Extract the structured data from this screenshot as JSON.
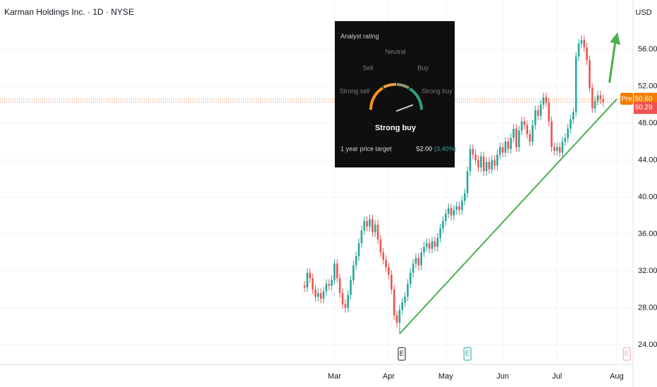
{
  "chart_data": {
    "type": "candlestick",
    "title": "Karman Holdings Inc. · 1D · NYSE",
    "currency": "USD",
    "up_color": "#26a69a",
    "down_color": "#ef5350",
    "grid": true,
    "xlim": [
      -112.2,
      121.0
    ],
    "ylim": [
      21.87,
      61.33
    ],
    "xticks": [
      {
        "value": 11,
        "label": "Mar"
      },
      {
        "value": 31,
        "label": "Apr"
      },
      {
        "value": 52,
        "label": "May"
      },
      {
        "value": 73,
        "label": "Jun"
      },
      {
        "value": 93,
        "label": "Jul"
      },
      {
        "value": 115,
        "label": "Aug"
      }
    ],
    "yticks": [
      {
        "value": 24,
        "label": "24.00"
      },
      {
        "value": 28,
        "label": "28.00"
      },
      {
        "value": 32,
        "label": "32.00"
      },
      {
        "value": 36,
        "label": "36.00"
      },
      {
        "value": 40,
        "label": "40.00"
      },
      {
        "value": 44,
        "label": "44.00"
      },
      {
        "value": 48,
        "label": "48.00"
      },
      {
        "value": 52,
        "label": "52.00"
      },
      {
        "value": 56,
        "label": "56.00"
      }
    ],
    "open": [
      30.4,
      30.2,
      31.8,
      31.2,
      30.0,
      29.2,
      29.6,
      29.0,
      29.8,
      30.6,
      30.4,
      31.0,
      32.8,
      31.2,
      29.6,
      28.4,
      28.0,
      29.4,
      31.0,
      32.6,
      33.6,
      35.0,
      36.4,
      37.4,
      36.8,
      37.6,
      36.2,
      37.0,
      35.4,
      34.0,
      33.2,
      32.4,
      31.6,
      30.0,
      27.2,
      26.4,
      27.8,
      28.6,
      29.2,
      30.6,
      31.8,
      32.8,
      33.4,
      32.6,
      34.0,
      34.6,
      35.0,
      34.4,
      35.2,
      34.6,
      35.6,
      36.6,
      37.4,
      38.2,
      38.8,
      38.0,
      38.6,
      39.0,
      38.6,
      39.6,
      40.4,
      42.8,
      45.2,
      44.6,
      44.0,
      43.2,
      44.4,
      42.8,
      43.8,
      43.0,
      44.0,
      43.4,
      44.6,
      45.4,
      44.8,
      46.0,
      45.2,
      46.4,
      47.4,
      45.4,
      47.2,
      48.2,
      47.8,
      46.8,
      46.0,
      47.8,
      49.4,
      48.8,
      50.0,
      50.8,
      50.2,
      48.2,
      45.4,
      45.0,
      45.4,
      44.8,
      46.0,
      46.4,
      47.4,
      48.4,
      49.2,
      55.2,
      56.6,
      57.0,
      56.2,
      54.8,
      51.8,
      49.6,
      50.4,
      51.0,
      50.6
    ],
    "high": [
      30.9,
      32.3,
      32.3,
      31.7,
      30.5,
      30.1,
      30.1,
      30.3,
      31.1,
      31.1,
      31.5,
      33.3,
      33.3,
      31.7,
      30.1,
      28.9,
      29.9,
      31.5,
      33.1,
      34.1,
      35.5,
      36.9,
      37.9,
      37.9,
      38.1,
      38.1,
      37.5,
      37.5,
      35.9,
      34.5,
      33.7,
      32.9,
      32.1,
      30.5,
      27.7,
      28.3,
      29.1,
      29.7,
      31.1,
      32.3,
      33.3,
      33.9,
      33.9,
      34.5,
      35.1,
      35.5,
      35.5,
      35.7,
      35.7,
      36.1,
      37.1,
      37.9,
      38.7,
      39.3,
      39.3,
      39.1,
      39.5,
      39.5,
      40.1,
      40.9,
      43.3,
      45.7,
      45.7,
      45.1,
      44.5,
      44.9,
      44.9,
      44.3,
      44.3,
      44.5,
      44.5,
      45.1,
      45.9,
      45.9,
      46.5,
      46.5,
      46.9,
      47.9,
      47.9,
      47.7,
      48.7,
      48.7,
      48.3,
      47.3,
      48.3,
      49.9,
      49.9,
      50.5,
      51.3,
      51.3,
      50.7,
      48.7,
      45.9,
      45.9,
      45.9,
      46.5,
      46.9,
      47.9,
      48.9,
      49.7,
      55.7,
      57.1,
      57.5,
      57.5,
      56.7,
      55.3,
      52.3,
      50.9,
      51.5,
      51.5,
      51.1
    ],
    "low": [
      29.7,
      29.7,
      30.7,
      29.5,
      28.7,
      28.7,
      28.5,
      28.5,
      29.3,
      29.9,
      29.9,
      30.5,
      30.7,
      29.1,
      27.9,
      27.5,
      27.5,
      28.9,
      30.5,
      32.1,
      33.1,
      34.5,
      35.9,
      36.3,
      36.3,
      35.7,
      35.7,
      34.9,
      33.5,
      32.7,
      31.9,
      31.1,
      29.5,
      26.7,
      25.9,
      25.2,
      27.3,
      28.1,
      28.7,
      30.1,
      31.3,
      32.3,
      32.1,
      32.1,
      33.5,
      34.1,
      33.9,
      33.9,
      34.1,
      34.1,
      35.1,
      36.1,
      36.9,
      37.7,
      37.5,
      37.5,
      38.1,
      38.1,
      38.1,
      39.1,
      39.9,
      42.3,
      44.1,
      43.5,
      42.7,
      42.7,
      42.3,
      42.3,
      42.5,
      42.5,
      42.9,
      42.9,
      44.1,
      44.3,
      44.3,
      44.7,
      44.7,
      45.9,
      44.9,
      44.9,
      46.7,
      47.3,
      46.3,
      45.5,
      45.5,
      47.3,
      48.3,
      48.3,
      49.5,
      49.7,
      47.7,
      44.9,
      44.5,
      44.5,
      44.3,
      44.3,
      45.5,
      45.9,
      46.9,
      47.9,
      48.7,
      54.7,
      56.1,
      55.7,
      54.3,
      51.3,
      49.1,
      49.1,
      49.9,
      50.1,
      49.8
    ],
    "close": [
      30.2,
      31.8,
      31.2,
      30.0,
      29.2,
      29.6,
      29.0,
      29.8,
      30.6,
      30.4,
      31.0,
      32.8,
      31.2,
      29.6,
      28.4,
      28.0,
      29.4,
      31.0,
      32.6,
      33.6,
      35.0,
      36.4,
      37.4,
      36.8,
      37.6,
      36.2,
      37.0,
      35.4,
      34.0,
      33.2,
      32.4,
      31.6,
      30.0,
      27.2,
      26.4,
      27.8,
      28.6,
      29.2,
      30.6,
      31.8,
      32.8,
      33.4,
      32.6,
      34.0,
      34.6,
      35.0,
      34.4,
      35.2,
      34.6,
      35.6,
      36.6,
      37.4,
      38.2,
      38.8,
      38.0,
      38.6,
      39.0,
      38.6,
      39.6,
      40.4,
      42.8,
      45.2,
      44.6,
      44.0,
      43.2,
      44.4,
      42.8,
      43.8,
      43.0,
      44.0,
      43.4,
      44.6,
      45.4,
      44.8,
      46.0,
      45.2,
      46.4,
      47.4,
      45.4,
      47.2,
      48.2,
      47.8,
      46.8,
      46.0,
      47.8,
      49.4,
      48.8,
      50.0,
      50.8,
      50.2,
      48.2,
      45.4,
      45.0,
      45.4,
      44.8,
      46.0,
      46.4,
      47.4,
      48.4,
      49.2,
      55.2,
      56.6,
      57.0,
      56.2,
      54.8,
      51.8,
      49.6,
      50.4,
      51.0,
      50.6,
      50.3
    ],
    "pre_label": "Pre",
    "pre_price": {
      "value": 50.6,
      "label": "50.60"
    },
    "pre_color": "#f57c00",
    "last_price": {
      "value": 50.29,
      "label": "50.29"
    },
    "last_color": "#ef5350",
    "trendline": {
      "x": [
        35,
        115
      ],
      "y": [
        25.2,
        50.6
      ],
      "color": "#4caf50"
    },
    "earnings": [
      {
        "x": 35.8,
        "label": "E",
        "color": "#131722"
      },
      {
        "x": 60,
        "label": "E",
        "color": "#26a69a"
      },
      {
        "x": 118.7,
        "label": "E",
        "color": "#f4a0a8"
      }
    ]
  },
  "analyst": {
    "title": "Analyst rating",
    "scale": [
      "Strong sell",
      "Sell",
      "Neutral",
      "Buy",
      "Strong buy"
    ],
    "rating": "Strong buy",
    "target_label": "1 year price target",
    "target": {
      "value": 52,
      "label": "52.00"
    },
    "target_change": "(3.40%)"
  }
}
